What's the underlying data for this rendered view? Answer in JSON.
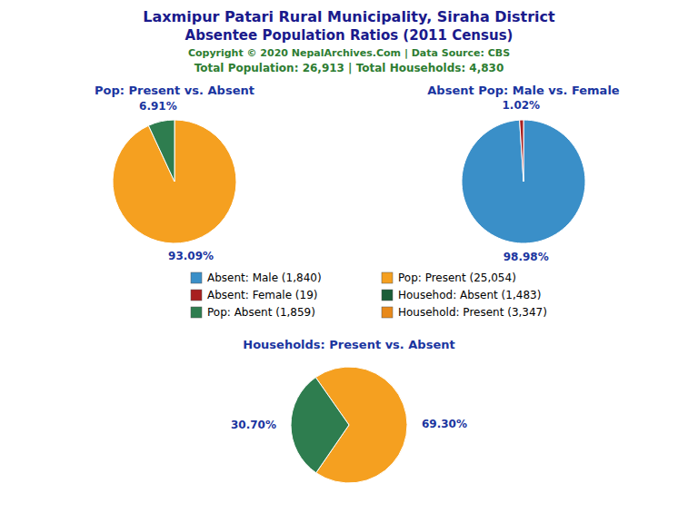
{
  "title": "Laxmipur Patari Rural Municipality, Siraha District",
  "subtitle": "Absentee Population Ratios (2011 Census)",
  "annotations": [
    "Copyright © 2020 NepalArchives.Com | Data Source: CBS",
    "Total Population: 26,913 | Total Households: 4,830"
  ],
  "series": [
    {
      "name": "Absent: Male (1,840)",
      "color": "#3A8FC8"
    },
    {
      "name": "Absent: Female (19)",
      "color": "#A82020"
    },
    {
      "name": "Pop: Absent (1,859)",
      "color": "#2E7D4F"
    },
    {
      "name": "Pop: Present (25,054)",
      "color": "#F5A020"
    },
    {
      "name": "Househod: Absent (1,483)",
      "color": "#1B5E38"
    },
    {
      "name": "Household: Present (3,347)",
      "color": "#E8891A"
    }
  ],
  "chart_data": [
    {
      "type": "pie",
      "title": "Pop: Present vs. Absent",
      "values": [
        93.09,
        6.91
      ],
      "value_labels": [
        "93.09%",
        "6.91%"
      ],
      "colors": [
        "#F5A020",
        "#2E7D4F"
      ],
      "data_labels": true
    },
    {
      "type": "pie",
      "title": "Absent Pop: Male vs. Female",
      "values": [
        98.98,
        1.02
      ],
      "value_labels": [
        "98.98%",
        "1.02%"
      ],
      "colors": [
        "#3A8FC8",
        "#A82020"
      ],
      "data_labels": true
    },
    {
      "type": "pie",
      "title": "Households: Present vs. Absent",
      "values": [
        69.3,
        30.7
      ],
      "value_labels": [
        "69.30%",
        "30.70%"
      ],
      "colors": [
        "#F5A020",
        "#2E7D4F"
      ],
      "data_labels": true
    }
  ]
}
